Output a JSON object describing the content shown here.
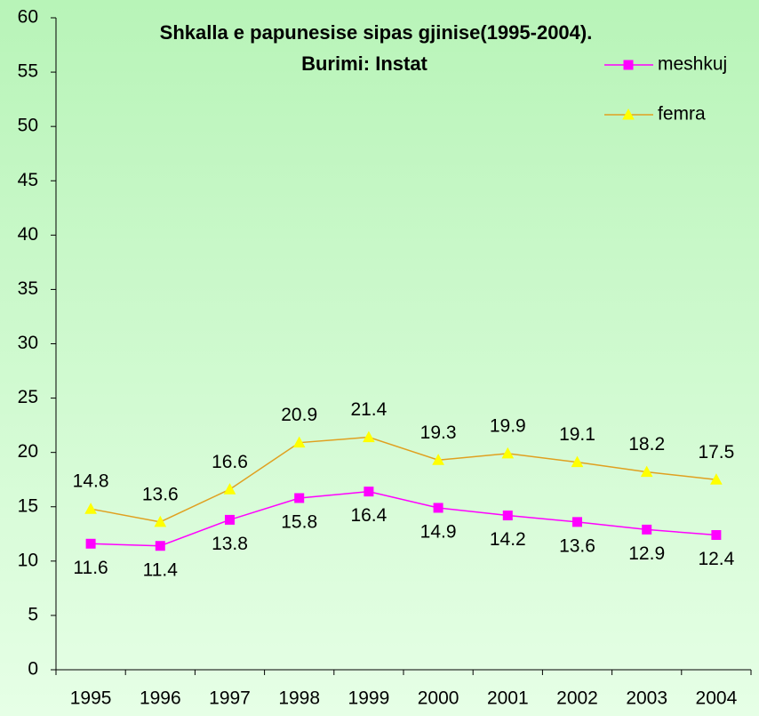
{
  "chart_data": {
    "type": "line",
    "title": "Shkalla e papunesise sipas gjinise(1995-2004).",
    "subtitle": "Burimi: Instat",
    "categories": [
      "1995",
      "1996",
      "1997",
      "1998",
      "1999",
      "2000",
      "2001",
      "2002",
      "2003",
      "2004"
    ],
    "series": [
      {
        "name": "meshkuj",
        "color": "#ff00ff",
        "marker": "square",
        "marker_color": "#ff00ff",
        "label_position": "below",
        "values": [
          11.6,
          11.4,
          13.8,
          15.8,
          16.4,
          14.9,
          14.2,
          13.6,
          12.9,
          12.4
        ]
      },
      {
        "name": "femra",
        "color": "#e0a020",
        "marker": "triangle",
        "marker_color": "#ffff00",
        "label_position": "above",
        "values": [
          14.8,
          13.6,
          16.6,
          20.9,
          21.4,
          19.3,
          19.9,
          19.1,
          18.2,
          17.5
        ]
      }
    ],
    "ylim": [
      0,
      60
    ],
    "yticks": [
      0,
      5,
      10,
      15,
      20,
      25,
      30,
      35,
      40,
      45,
      50,
      55,
      60
    ],
    "grid": false,
    "legend": "top-right"
  }
}
